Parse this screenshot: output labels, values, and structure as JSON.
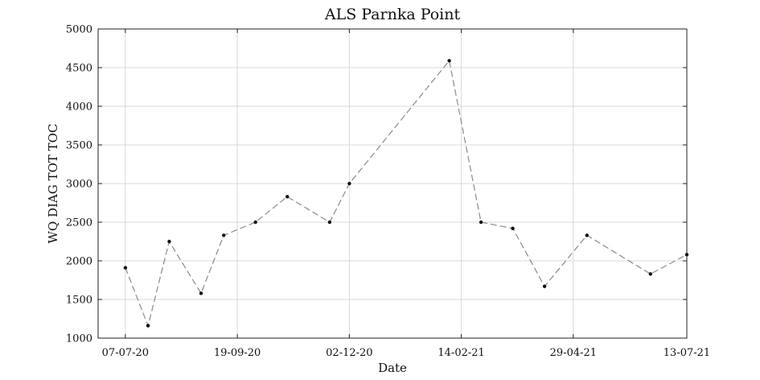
{
  "chart_data": {
    "type": "line",
    "title": "ALS Parnka Point",
    "xlabel": "Date",
    "ylabel": "WQ DIAG TOT TOC",
    "x_tick_labels": [
      "07-07-20",
      "19-09-20",
      "02-12-20",
      "14-02-21",
      "29-04-21",
      "13-07-21"
    ],
    "x_ticks": [
      "2020-07-07",
      "2020-09-19",
      "2020-12-02",
      "2021-02-14",
      "2021-04-29",
      "2021-07-13"
    ],
    "xlim": [
      "2020-06-19",
      "2021-07-13"
    ],
    "ylim": [
      1000,
      5000
    ],
    "y_ticks": [
      1000,
      1500,
      2000,
      2500,
      3000,
      3500,
      4000,
      4500,
      5000
    ],
    "grid": true,
    "series": [
      {
        "x": [
          "2020-07-07",
          "2020-07-22",
          "2020-08-05",
          "2020-08-26",
          "2020-09-10",
          "2020-10-01",
          "2020-10-22",
          "2020-11-19",
          "2020-12-02",
          "2021-02-06",
          "2021-02-27",
          "2021-03-20",
          "2021-04-10",
          "2021-05-08",
          "2021-06-19",
          "2021-07-13"
        ],
        "values": [
          1910,
          1160,
          2250,
          1580,
          2330,
          2500,
          2830,
          2500,
          3000,
          4590,
          2500,
          2420,
          1670,
          2330,
          1830,
          2080
        ]
      }
    ]
  }
}
